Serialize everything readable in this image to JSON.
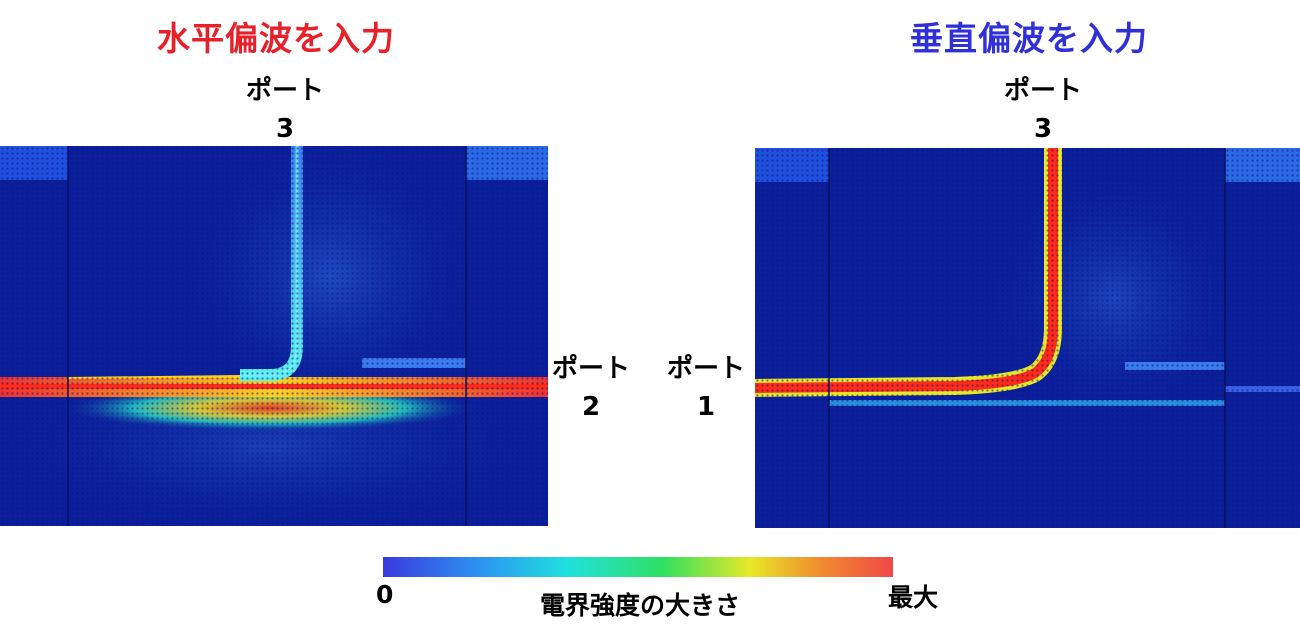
{
  "left_panel": {
    "title": "水平偏波を入力",
    "title_color": "#e8202a",
    "port_top": {
      "label": "ポート",
      "number": "3"
    },
    "port_right": {
      "label": "ポート",
      "number": "2"
    }
  },
  "right_panel": {
    "title": "垂直偏波を入力",
    "title_color": "#3030d8",
    "port_top": {
      "label": "ポート",
      "number": "3"
    },
    "port_left": {
      "label": "ポート",
      "number": "1"
    }
  },
  "colorbar": {
    "min_label": "0",
    "max_label": "最大",
    "caption": "電界強度の大きさ",
    "colors": [
      "#3a3adf",
      "#2e8ff0",
      "#20e0e0",
      "#30e060",
      "#e8e828",
      "#f08a30",
      "#f04848"
    ]
  },
  "colors": {
    "background_field": "#0b1f9c",
    "hot": "#ff2a1a"
  }
}
